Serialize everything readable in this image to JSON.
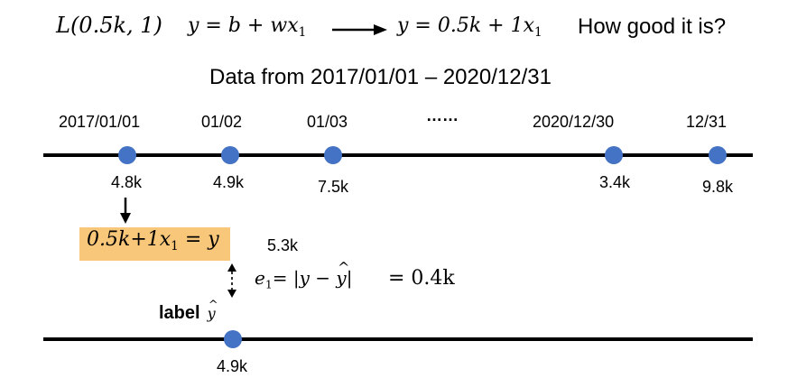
{
  "header": {
    "loss_expr": "L(0.5k, 1)",
    "model_expr": "y = b + w",
    "model_var": "x",
    "model_sub": "1",
    "fitted_expr": "y = 0.5k + 1",
    "fitted_var": "x",
    "fitted_sub": "1",
    "question": "How good it is?"
  },
  "data_range": "Data from 2017/01/01 – 2020/12/31",
  "timeline": {
    "dates": [
      "2017/01/01",
      "01/02",
      "01/03",
      "……",
      "2020/12/30",
      "12/31"
    ],
    "values": [
      "4.8k",
      "4.9k",
      "7.5k",
      "3.4k",
      "9.8k"
    ]
  },
  "prediction": {
    "formula_left": "0.5k+1",
    "var": "x",
    "sub": "1",
    "formula_right": " = y",
    "value": "5.3k"
  },
  "error": {
    "lhs_var": "e",
    "lhs_sub": "1",
    "eq": "= ",
    "abs_expr": "|y − ",
    "abs_hat": "y",
    "abs_close": "|",
    "result": "= 0.4k"
  },
  "label": {
    "text": "label",
    "symbol": "y",
    "value": "4.9k"
  }
}
